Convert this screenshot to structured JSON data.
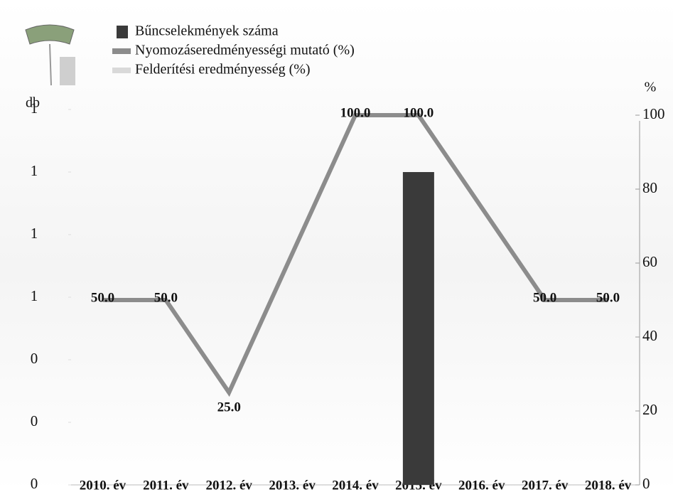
{
  "chart_data": {
    "type": "bar-line",
    "categories": [
      "2010. év",
      "2011. év",
      "2012. év",
      "2013. év",
      "2014. év",
      "2015. év",
      "2016. év",
      "2017. év",
      "2018. év"
    ],
    "ylabel": "db",
    "y2label": "%",
    "ylim": [
      0,
      1.3
    ],
    "yticks": [
      0,
      {
        "value": 0.2,
        "label": "0"
      },
      {
        "value": 0.4,
        "label": "0"
      },
      {
        "value": 0.6,
        "label": "1"
      },
      {
        "value": 0.8,
        "label": "1"
      },
      1,
      {
        "value": 1.2,
        "label": "1"
      }
    ],
    "y2lim": [
      0,
      110
    ],
    "y2ticks": [
      0,
      20,
      40,
      60,
      80,
      100
    ],
    "series": [
      {
        "name": "Bűncselekmények száma",
        "type": "bar",
        "color": "#3a3a3a",
        "values": [
          0,
          0,
          0,
          0,
          0,
          1,
          0,
          0,
          0
        ]
      },
      {
        "name": "Nyomozáseredményességi mutató (%)",
        "type": "line",
        "axis": "y2",
        "color": "#8c8c8c",
        "values": [
          50,
          50,
          25,
          null,
          100,
          100,
          null,
          50,
          50
        ],
        "value_labels": [
          "50.0",
          "50.0",
          "25.0",
          null,
          "100.0",
          "100.0",
          null,
          "50.0",
          "50.0"
        ]
      },
      {
        "name": "Felderítési eredményesség (%)",
        "type": "line",
        "axis": "y2",
        "color": "#d9d9d9",
        "values": [
          null,
          null,
          null,
          null,
          null,
          null,
          null,
          null,
          null
        ]
      }
    ]
  }
}
